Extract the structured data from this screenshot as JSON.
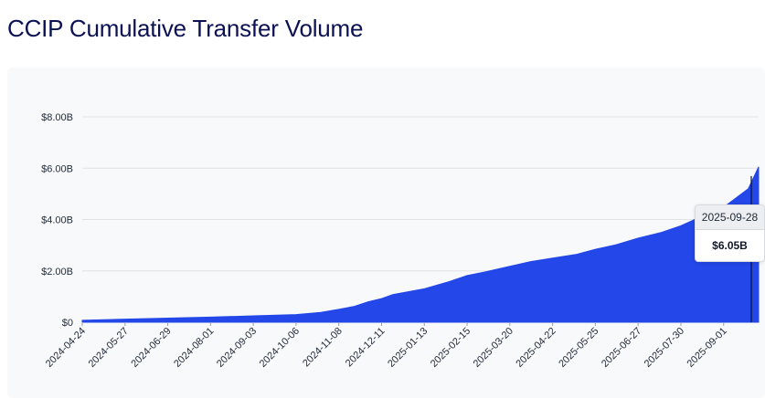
{
  "title": "CCIP Cumulative Transfer Volume",
  "colors": {
    "area": "#2347e8",
    "title": "#0b1152",
    "panel": "#f8f9fb",
    "grid": "#dfe2e7"
  },
  "tooltip": {
    "date": "2025-09-28",
    "value": "$6.05B"
  },
  "chart_data": {
    "type": "area",
    "title": "CCIP Cumulative Transfer Volume",
    "xlabel": "",
    "ylabel": "",
    "ylim": [
      0,
      8
    ],
    "y_unit": "billion USD",
    "y_ticks": [
      0,
      2,
      4,
      6,
      8
    ],
    "y_tick_labels": [
      "$0",
      "$2.00B",
      "$4.00B",
      "$6.00B",
      "$8.00B"
    ],
    "x_range": [
      "2024-04-24",
      "2025-09-28"
    ],
    "x_tick_labels": [
      "2024-04-24",
      "2024-05-27",
      "2024-06-29",
      "2024-08-01",
      "2024-09-03",
      "2024-10-06",
      "2024-11-08",
      "2024-12-11",
      "2025-01-13",
      "2025-02-15",
      "2025-03-20",
      "2025-04-22",
      "2025-05-25",
      "2025-06-27",
      "2025-07-30",
      "2025-09-01"
    ],
    "grid": "horizontal",
    "legend": "none",
    "series": [
      {
        "x": [
          "2024-04-24",
          "2024-05-27",
          "2024-06-29",
          "2024-08-01",
          "2024-09-03",
          "2024-10-06",
          "2024-10-25",
          "2024-11-08",
          "2024-11-20",
          "2024-12-01",
          "2024-12-11",
          "2024-12-20",
          "2025-01-13",
          "2025-02-01",
          "2025-02-15",
          "2025-03-01",
          "2025-03-20",
          "2025-04-05",
          "2025-04-22",
          "2025-05-10",
          "2025-05-25",
          "2025-06-10",
          "2025-06-27",
          "2025-07-15",
          "2025-07-30",
          "2025-08-15",
          "2025-09-01",
          "2025-09-20",
          "2025-09-28"
        ],
        "values": [
          0.08,
          0.12,
          0.16,
          0.2,
          0.25,
          0.3,
          0.38,
          0.5,
          0.62,
          0.8,
          0.92,
          1.08,
          1.3,
          1.58,
          1.82,
          1.96,
          2.18,
          2.36,
          2.5,
          2.64,
          2.84,
          3.02,
          3.28,
          3.5,
          3.76,
          4.12,
          4.48,
          5.2,
          6.05
        ]
      }
    ],
    "highlight": {
      "x": "2025-09-28",
      "value": 6.05
    }
  }
}
